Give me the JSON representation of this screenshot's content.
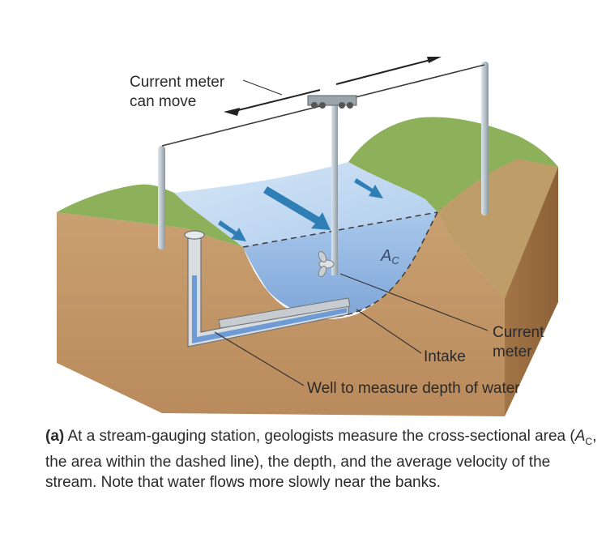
{
  "labels": {
    "current_meter_can_move_line1": "Current meter",
    "current_meter_can_move_line2": "can move",
    "area_symbol": "A",
    "area_subscript": "C",
    "current_meter_line1": "Current",
    "current_meter_line2": "meter",
    "intake": "Intake",
    "well": "Well to measure depth of water"
  },
  "caption": {
    "part": "(a)",
    "text_before_symbol": "At a stream-gauging station, geologists measure the cross-sectional area (",
    "symbol": "A",
    "symbol_subscript": "C",
    "text_after_symbol": ", the area within the dashed line), the depth, and the average velocity of the stream. Note that water flows more slowly near the banks."
  },
  "colors": {
    "soil": "#c79a6c",
    "soil_dark": "#a97b51",
    "grass": "#8bab56",
    "water": "#a9c9ea",
    "water_deep": "#8fb4e0",
    "arrow": "#2f7fb6",
    "pole": "#b9c4cc"
  }
}
